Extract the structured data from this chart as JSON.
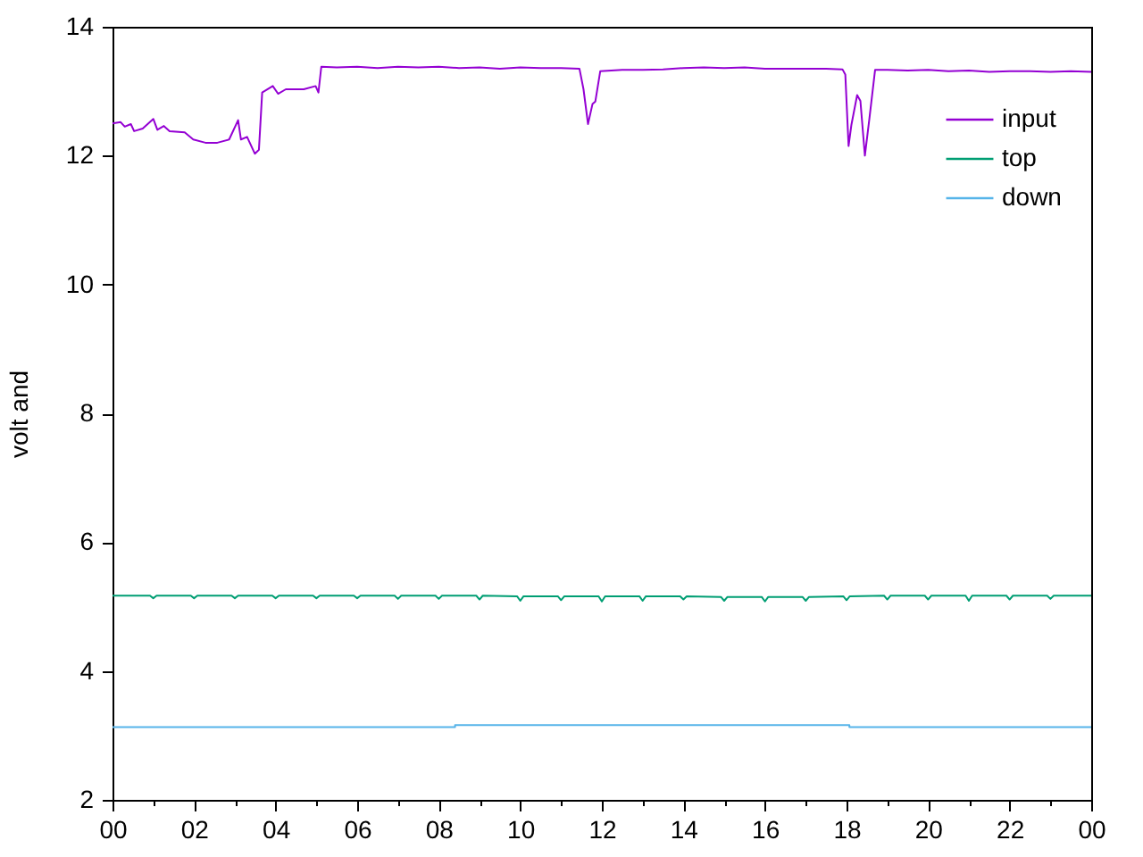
{
  "chart_data": {
    "type": "line",
    "ylabel": "volt and",
    "legend": "top right",
    "xlim": [
      0,
      24
    ],
    "xticks": [
      {
        "value": 0,
        "label": "00"
      },
      {
        "value": 1,
        "label": null
      },
      {
        "value": 2,
        "label": "02"
      },
      {
        "value": 3,
        "label": null
      },
      {
        "value": 4,
        "label": "04"
      },
      {
        "value": 5,
        "label": null
      },
      {
        "value": 6,
        "label": "06"
      },
      {
        "value": 7,
        "label": null
      },
      {
        "value": 8,
        "label": "08"
      },
      {
        "value": 9,
        "label": null
      },
      {
        "value": 10,
        "label": "10"
      },
      {
        "value": 11,
        "label": null
      },
      {
        "value": 12,
        "label": "12"
      },
      {
        "value": 13,
        "label": null
      },
      {
        "value": 14,
        "label": "14"
      },
      {
        "value": 15,
        "label": null
      },
      {
        "value": 16,
        "label": "16"
      },
      {
        "value": 17,
        "label": null
      },
      {
        "value": 18,
        "label": "18"
      },
      {
        "value": 19,
        "label": null
      },
      {
        "value": 20,
        "label": "20"
      },
      {
        "value": 21,
        "label": null
      },
      {
        "value": 22,
        "label": "22"
      },
      {
        "value": 23,
        "label": null
      },
      {
        "value": 24,
        "label": "00"
      }
    ],
    "ylim": [
      2,
      14
    ],
    "yticks": [
      2,
      4,
      6,
      8,
      10,
      12,
      14
    ],
    "series": [
      {
        "name": "input",
        "color": "#9400d3",
        "x": [
          0,
          0.2,
          0.3,
          0.45,
          0.53,
          0.74,
          1.0,
          1.1,
          1.26,
          1.4,
          1.77,
          1.98,
          2.28,
          2.57,
          2.86,
          3.08,
          3.15,
          3.3,
          3.49,
          3.59,
          3.67,
          3.93,
          4.06,
          4.25,
          4.69,
          4.98,
          5.05,
          5.12,
          5.5,
          6.0,
          6.5,
          7.0,
          7.5,
          8.0,
          8.5,
          9.0,
          9.5,
          10.0,
          10.5,
          11.0,
          11.45,
          11.55,
          11.66,
          11.77,
          11.84,
          11.96,
          12.5,
          13.0,
          13.5,
          14.0,
          14.5,
          15.0,
          15.5,
          16.0,
          16.5,
          17.0,
          17.5,
          17.9,
          17.97,
          18.05,
          18.12,
          18.26,
          18.34,
          18.45,
          18.56,
          18.7,
          19.0,
          19.5,
          20.0,
          20.5,
          21.0,
          21.5,
          22.0,
          22.5,
          23.0,
          23.5,
          24.0
        ],
        "values": [
          12.5,
          12.52,
          12.45,
          12.49,
          12.38,
          12.42,
          12.57,
          12.4,
          12.46,
          12.38,
          12.36,
          12.25,
          12.2,
          12.2,
          12.25,
          12.55,
          12.25,
          12.29,
          12.03,
          12.09,
          12.98,
          13.08,
          12.96,
          13.03,
          13.03,
          13.08,
          12.98,
          13.38,
          13.37,
          13.38,
          13.36,
          13.38,
          13.37,
          13.38,
          13.36,
          13.37,
          13.35,
          13.37,
          13.36,
          13.36,
          13.35,
          13.03,
          12.49,
          12.8,
          12.84,
          13.31,
          13.33,
          13.33,
          13.34,
          13.36,
          13.37,
          13.36,
          13.37,
          13.35,
          13.35,
          13.35,
          13.35,
          13.34,
          13.26,
          12.15,
          12.48,
          12.94,
          12.85,
          12.0,
          12.57,
          13.33,
          13.33,
          13.32,
          13.33,
          13.31,
          13.32,
          13.3,
          13.31,
          13.31,
          13.3,
          13.31,
          13.3
        ]
      },
      {
        "name": "top",
        "color": "#009e73",
        "x": [
          0,
          0.92,
          1,
          1.08,
          1.92,
          2,
          2.08,
          2.92,
          3,
          3.08,
          3.92,
          4,
          4.08,
          4.92,
          5,
          5.08,
          5.92,
          6,
          6.08,
          6.92,
          7,
          7.08,
          7.92,
          8,
          8.08,
          8.92,
          9,
          9.08,
          9.92,
          10,
          10.08,
          10.92,
          11,
          11.08,
          11.92,
          12,
          12.08,
          12.92,
          13,
          13.08,
          13.92,
          14,
          14.08,
          14.92,
          15,
          15.08,
          15.92,
          16,
          16.08,
          16.92,
          17,
          17.08,
          17.92,
          18,
          18.08,
          18.92,
          19,
          19.08,
          19.92,
          20,
          20.08,
          20.92,
          21,
          21.08,
          21.92,
          22,
          22.08,
          22.92,
          23,
          23.08,
          24
        ],
        "values": [
          5.17,
          5.17,
          5.13,
          5.17,
          5.17,
          5.13,
          5.17,
          5.17,
          5.13,
          5.17,
          5.17,
          5.13,
          5.17,
          5.17,
          5.13,
          5.17,
          5.17,
          5.13,
          5.17,
          5.17,
          5.12,
          5.17,
          5.17,
          5.12,
          5.17,
          5.17,
          5.11,
          5.17,
          5.16,
          5.09,
          5.16,
          5.16,
          5.1,
          5.16,
          5.16,
          5.08,
          5.16,
          5.16,
          5.09,
          5.16,
          5.16,
          5.11,
          5.16,
          5.15,
          5.09,
          5.15,
          5.15,
          5.08,
          5.15,
          5.15,
          5.09,
          5.15,
          5.16,
          5.1,
          5.16,
          5.17,
          5.11,
          5.17,
          5.17,
          5.11,
          5.17,
          5.17,
          5.09,
          5.17,
          5.17,
          5.11,
          5.17,
          5.17,
          5.12,
          5.17,
          5.17
        ]
      },
      {
        "name": "down",
        "color": "#56b4e9",
        "x": [
          0,
          8.4,
          8.4,
          18.07,
          18.07,
          24
        ],
        "values": [
          3.13,
          3.13,
          3.16,
          3.16,
          3.13,
          3.13
        ]
      }
    ]
  }
}
